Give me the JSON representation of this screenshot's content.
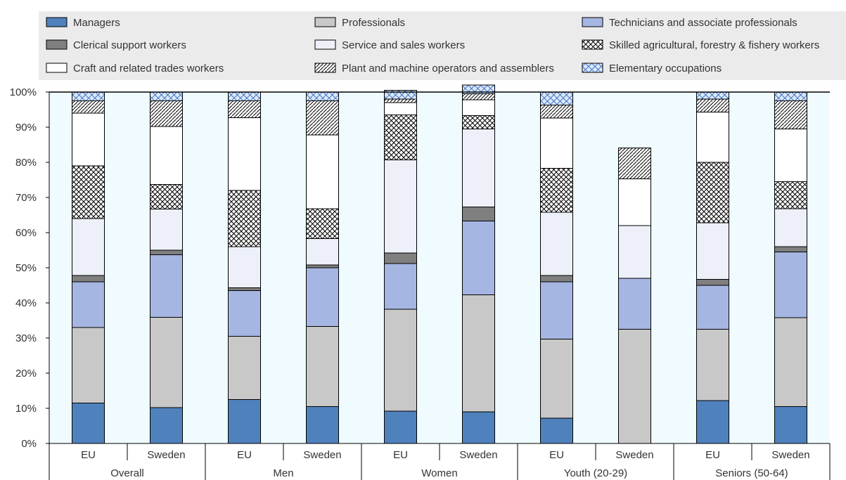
{
  "chart_data": {
    "type": "bar",
    "stacked": true,
    "yaxis": {
      "ylim": [
        0,
        100
      ],
      "ticks": [
        "0%",
        "10%",
        "20%",
        "30%",
        "40%",
        "50%",
        "60%",
        "70%",
        "80%",
        "90%",
        "100%"
      ]
    },
    "groups": [
      {
        "label": "Overall",
        "bars": [
          "EU",
          "Sweden"
        ]
      },
      {
        "label": "Men",
        "bars": [
          "EU",
          "Sweden"
        ]
      },
      {
        "label": "Women",
        "bars": [
          "EU",
          "Sweden"
        ]
      },
      {
        "label": "Youth (20-29)",
        "bars": [
          "EU",
          "Sweden"
        ]
      },
      {
        "label": "Seniors (50-64)",
        "bars": [
          "EU",
          "Sweden"
        ]
      }
    ],
    "series": [
      {
        "name": "Managers",
        "fill": "#4f81bd",
        "pattern": "none",
        "values": [
          11.5,
          10.2,
          12.5,
          10.5,
          9.2,
          9.0,
          7.2,
          0,
          12.2,
          10.5
        ]
      },
      {
        "name": "Professionals",
        "fill": "#c8c8c8",
        "pattern": "none",
        "values": [
          21.5,
          25.7,
          18.0,
          22.8,
          29.0,
          33.3,
          22.5,
          32.5,
          20.3,
          25.3
        ]
      },
      {
        "name": "Technicians and associate professionals",
        "fill": "#a6b6e2",
        "pattern": "none",
        "values": [
          13.0,
          17.8,
          13.0,
          16.7,
          13.0,
          21.0,
          16.3,
          14.5,
          12.5,
          18.7
        ]
      },
      {
        "name": "Clerical support workers",
        "fill": "#7f7f7f",
        "pattern": "none",
        "values": [
          1.8,
          1.3,
          0.8,
          0.8,
          3.0,
          4.0,
          1.8,
          0,
          1.7,
          1.5
        ]
      },
      {
        "name": "Service and sales workers",
        "fill": "#edf0f8",
        "pattern": "none",
        "values": [
          16.2,
          11.7,
          11.7,
          7.5,
          26.5,
          22.2,
          18.0,
          15.0,
          16.1,
          10.8
        ]
      },
      {
        "name": "Skilled agricultural, forestry & fishery workers",
        "fill": "#ffffff",
        "pattern": "crosshatch",
        "values": [
          15.0,
          7.0,
          16.0,
          8.5,
          12.8,
          3.8,
          12.5,
          0,
          17.2,
          7.7
        ]
      },
      {
        "name": "Craft and related trades workers",
        "fill": "#ffffff",
        "pattern": "none",
        "values": [
          15.0,
          16.5,
          20.7,
          21.0,
          3.5,
          4.5,
          14.3,
          13.3,
          14.3,
          15.0
        ]
      },
      {
        "name": "Plant and machine operators and assemblers",
        "fill": "#ffffff",
        "pattern": "diagonal",
        "values": [
          3.5,
          7.3,
          4.8,
          9.7,
          1.0,
          1.7,
          3.7,
          8.8,
          3.7,
          8.0
        ]
      },
      {
        "name": "Elementary occupations",
        "fill": "#dbe7f7",
        "pattern": "lattice",
        "values": [
          2.5,
          2.5,
          2.5,
          2.5,
          2.5,
          2.5,
          3.7,
          0,
          2.0,
          2.5
        ]
      }
    ],
    "legend": {
      "placement": "top",
      "columns": 3
    },
    "plot_background": "#f0fbff",
    "grid": false
  }
}
